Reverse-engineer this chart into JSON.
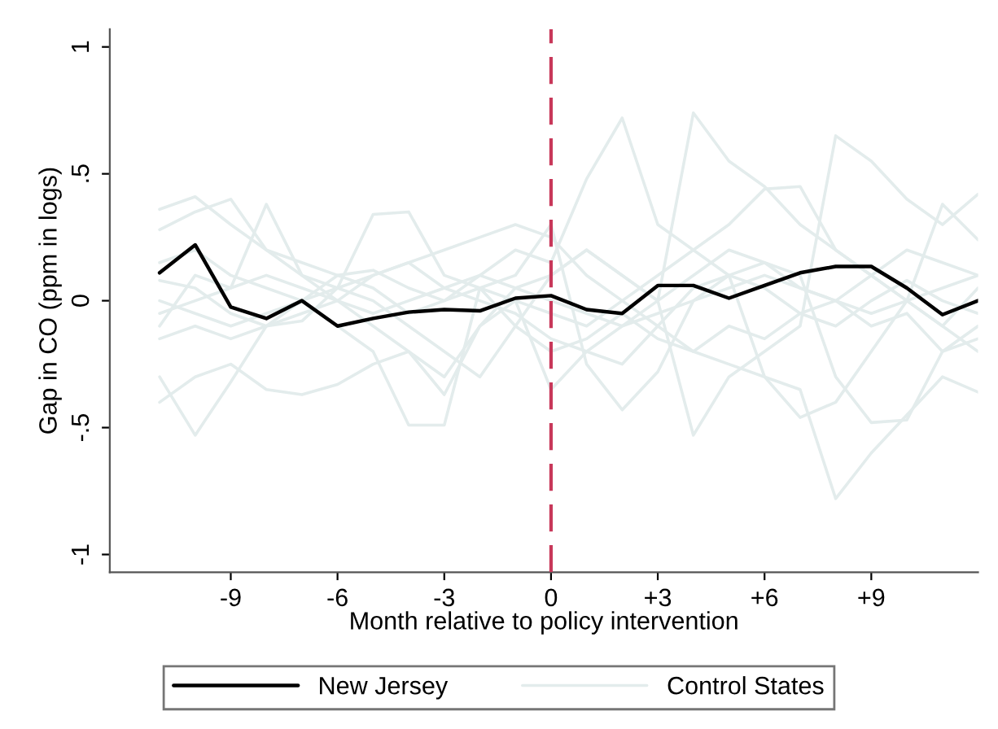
{
  "chart_data": {
    "type": "line",
    "xlabel": "Month relative to policy intervention",
    "ylabel": "Gap in CO (ppm in logs)",
    "x": [
      -11,
      -10,
      -9,
      -8,
      -7,
      -6,
      -5,
      -4,
      -3,
      -2,
      -1,
      0,
      1,
      2,
      3,
      4,
      5,
      6,
      7,
      8,
      9,
      10,
      11,
      12
    ],
    "xlim": [
      -12.4,
      12
    ],
    "xticks": [
      -9,
      -6,
      -3,
      0,
      {
        "value": 3,
        "label": "+3"
      },
      {
        "value": 6,
        "label": "+6"
      },
      {
        "value": 9,
        "label": "+9"
      }
    ],
    "ylim": [
      -1.07,
      1.07
    ],
    "yticks": [
      {
        "value": -1,
        "label": "-1"
      },
      {
        "value": -0.5,
        "label": "-.5"
      },
      0,
      {
        "value": 0.5,
        "label": ".5"
      },
      1
    ],
    "grid": false,
    "legend": "bottom",
    "marker": "none",
    "line_style": "solid",
    "ref_lines": [
      {
        "axis": "x",
        "value": 0,
        "color": "#c8385a",
        "line_style": "dashed"
      }
    ],
    "series": [
      {
        "name": "New Jersey",
        "color": "#000000",
        "values": [
          0.11,
          0.22,
          -0.025,
          -0.07,
          0.0,
          -0.1,
          -0.07,
          -0.045,
          -0.035,
          -0.04,
          0.01,
          0.02,
          -0.035,
          -0.05,
          0.06,
          0.06,
          0.01,
          0.06,
          0.11,
          0.135,
          0.135,
          0.05,
          -0.055,
          0.0
        ]
      },
      {
        "name": "Control States",
        "color": "#e3ecec",
        "values": [
          0.36,
          0.41,
          0.3,
          0.2,
          0.15,
          0.1,
          0.12,
          0.05,
          0.0,
          0.1,
          0.2,
          0.15,
          0.48,
          0.72,
          0.3,
          0.2,
          0.1,
          0.15,
          0.05,
          0.0,
          0.1,
          0.2,
          0.15,
          0.1
        ]
      },
      {
        "color": "#e3ecec",
        "values": [
          -0.4,
          -0.3,
          -0.25,
          -0.35,
          -0.37,
          -0.33,
          -0.25,
          -0.2,
          -0.3,
          -0.1,
          0.05,
          0.1,
          0.2,
          0.1,
          0.0,
          0.74,
          0.55,
          0.45,
          0.3,
          0.2,
          0.1,
          0.0,
          -0.1,
          0.05
        ]
      },
      {
        "color": "#e3ecec",
        "values": [
          -0.3,
          -0.53,
          -0.32,
          -0.1,
          -0.05,
          0.0,
          0.1,
          0.15,
          0.2,
          0.25,
          0.3,
          0.25,
          0.1,
          0.0,
          -0.1,
          -0.2,
          -0.25,
          -0.3,
          -0.35,
          -0.78,
          -0.6,
          -0.45,
          -0.3,
          -0.36
        ]
      },
      {
        "color": "#e3ecec",
        "values": [
          0.28,
          0.35,
          0.4,
          0.2,
          0.1,
          0.05,
          0.0,
          -0.1,
          -0.2,
          -0.3,
          -0.1,
          0.1,
          0.2,
          0.1,
          0.0,
          -0.53,
          -0.3,
          -0.2,
          -0.1,
          0.65,
          0.55,
          0.4,
          0.3,
          0.42
        ]
      },
      {
        "color": "#e3ecec",
        "values": [
          -0.1,
          0.1,
          0.05,
          0.38,
          0.1,
          0.0,
          -0.1,
          -0.2,
          -0.37,
          -0.1,
          0.0,
          -0.05,
          -0.1,
          0.0,
          0.1,
          0.2,
          0.3,
          0.44,
          0.45,
          0.2,
          0.1,
          0.0,
          -0.1,
          -0.2
        ]
      },
      {
        "color": "#e3ecec",
        "values": [
          0.0,
          -0.05,
          -0.1,
          -0.05,
          0.0,
          0.05,
          0.34,
          0.35,
          0.1,
          0.05,
          0.0,
          -0.35,
          -0.2,
          -0.1,
          0.0,
          0.1,
          0.2,
          0.15,
          0.1,
          -0.3,
          -0.48,
          -0.47,
          -0.2,
          -0.1
        ]
      },
      {
        "color": "#e3ecec",
        "values": [
          0.15,
          0.2,
          0.1,
          0.05,
          0.0,
          -0.1,
          -0.2,
          -0.49,
          -0.49,
          0.05,
          0.1,
          0.3,
          -0.25,
          -0.43,
          -0.28,
          0.0,
          0.1,
          -0.3,
          -0.46,
          -0.4,
          -0.2,
          0.0,
          0.38,
          0.24
        ]
      },
      {
        "color": "#e3ecec",
        "values": [
          -0.05,
          0.0,
          0.05,
          0.1,
          0.05,
          0.0,
          -0.05,
          0.0,
          0.05,
          0.1,
          0.05,
          0.0,
          -0.05,
          -0.1,
          -0.05,
          0.0,
          0.05,
          0.1,
          0.05,
          0.0,
          -0.05,
          0.0,
          0.05,
          0.1
        ]
      },
      {
        "color": "#e3ecec",
        "values": [
          0.08,
          0.05,
          -0.05,
          -0.1,
          -0.08,
          0.05,
          0.1,
          0.15,
          0.05,
          0.0,
          -0.05,
          -0.15,
          -0.2,
          -0.25,
          -0.1,
          0.05,
          0.1,
          0.05,
          -0.05,
          -0.1,
          0.0,
          0.08,
          0.0,
          -0.05
        ]
      },
      {
        "color": "#e3ecec",
        "values": [
          -0.15,
          -0.1,
          -0.15,
          -0.1,
          0.0,
          0.1,
          0.05,
          -0.05,
          0.0,
          0.05,
          -0.1,
          -0.2,
          -0.15,
          -0.05,
          -0.15,
          -0.2,
          -0.1,
          -0.15,
          -0.05,
          0.0,
          -0.1,
          -0.05,
          -0.2,
          -0.15
        ]
      }
    ]
  }
}
